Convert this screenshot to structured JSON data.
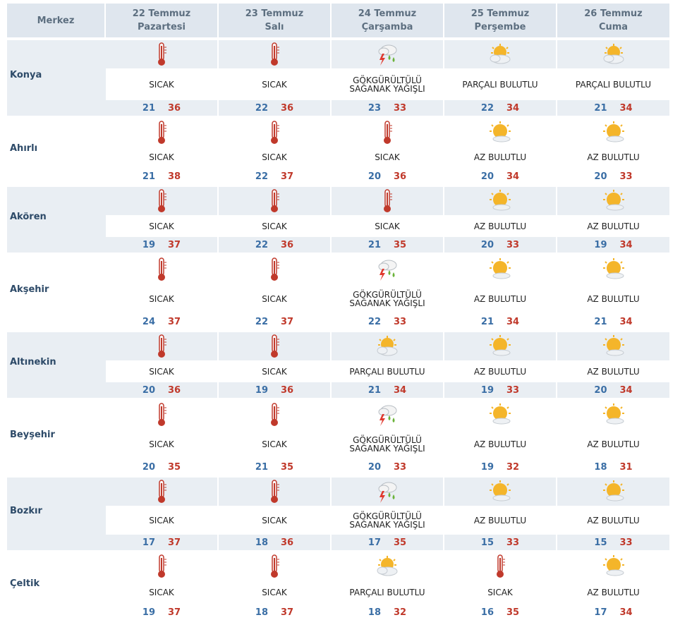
{
  "header": {
    "city_label": "Merkez",
    "days": [
      {
        "date": "22 Temmuz",
        "weekday": "Pazartesi"
      },
      {
        "date": "23 Temmuz",
        "weekday": "Salı"
      },
      {
        "date": "24 Temmuz",
        "weekday": "Çarşamba"
      },
      {
        "date": "25 Temmuz",
        "weekday": "Perşembe"
      },
      {
        "date": "26 Temmuz",
        "weekday": "Cuma"
      }
    ]
  },
  "colors": {
    "header_bg": "#dfe6ee",
    "row_shade": "#e9eef3",
    "min_temp": "#3a6ea5",
    "max_temp": "#c0392b",
    "city_text": "#2d4a68"
  },
  "rows": [
    {
      "city": "Konya",
      "days": [
        {
          "icon": "thermometer-icon",
          "cond": [
            "SICAK"
          ],
          "min": "21",
          "max": "36"
        },
        {
          "icon": "thermometer-icon",
          "cond": [
            "SICAK"
          ],
          "min": "22",
          "max": "36"
        },
        {
          "icon": "thunderstorm-icon",
          "cond": [
            "GÖKGÜRÜLTÜLÜ",
            "SAĞANAK YAĞIŞLI"
          ],
          "min": "23",
          "max": "33"
        },
        {
          "icon": "partly-cloudy-icon",
          "cond": [
            "PARÇALI BULUTLU"
          ],
          "min": "22",
          "max": "34"
        },
        {
          "icon": "partly-cloudy-icon",
          "cond": [
            "PARÇALI BULUTLU"
          ],
          "min": "21",
          "max": "34"
        }
      ]
    },
    {
      "city": "Ahırlı",
      "days": [
        {
          "icon": "thermometer-icon",
          "cond": [
            "SICAK"
          ],
          "min": "21",
          "max": "38"
        },
        {
          "icon": "thermometer-icon",
          "cond": [
            "SICAK"
          ],
          "min": "22",
          "max": "37"
        },
        {
          "icon": "thermometer-icon",
          "cond": [
            "SICAK"
          ],
          "min": "20",
          "max": "36"
        },
        {
          "icon": "mostly-sunny-icon",
          "cond": [
            "AZ BULUTLU"
          ],
          "min": "20",
          "max": "34"
        },
        {
          "icon": "mostly-sunny-icon",
          "cond": [
            "AZ BULUTLU"
          ],
          "min": "20",
          "max": "33"
        }
      ]
    },
    {
      "city": "Akören",
      "days": [
        {
          "icon": "thermometer-icon",
          "cond": [
            "SICAK"
          ],
          "min": "19",
          "max": "37"
        },
        {
          "icon": "thermometer-icon",
          "cond": [
            "SICAK"
          ],
          "min": "22",
          "max": "36"
        },
        {
          "icon": "thermometer-icon",
          "cond": [
            "SICAK"
          ],
          "min": "21",
          "max": "35"
        },
        {
          "icon": "mostly-sunny-icon",
          "cond": [
            "AZ BULUTLU"
          ],
          "min": "20",
          "max": "33"
        },
        {
          "icon": "mostly-sunny-icon",
          "cond": [
            "AZ BULUTLU"
          ],
          "min": "19",
          "max": "34"
        }
      ]
    },
    {
      "city": "Akşehir",
      "days": [
        {
          "icon": "thermometer-icon",
          "cond": [
            "SICAK"
          ],
          "min": "24",
          "max": "37"
        },
        {
          "icon": "thermometer-icon",
          "cond": [
            "SICAK"
          ],
          "min": "22",
          "max": "37"
        },
        {
          "icon": "thunderstorm-icon",
          "cond": [
            "GÖKGÜRÜLTÜLÜ",
            "SAĞANAK YAĞIŞLI"
          ],
          "min": "22",
          "max": "33"
        },
        {
          "icon": "mostly-sunny-icon",
          "cond": [
            "AZ BULUTLU"
          ],
          "min": "21",
          "max": "34"
        },
        {
          "icon": "mostly-sunny-icon",
          "cond": [
            "AZ BULUTLU"
          ],
          "min": "21",
          "max": "34"
        }
      ]
    },
    {
      "city": "Altınekin",
      "days": [
        {
          "icon": "thermometer-icon",
          "cond": [
            "SICAK"
          ],
          "min": "20",
          "max": "36"
        },
        {
          "icon": "thermometer-icon",
          "cond": [
            "SICAK"
          ],
          "min": "19",
          "max": "36"
        },
        {
          "icon": "partly-cloudy-icon",
          "cond": [
            "PARÇALI BULUTLU"
          ],
          "min": "21",
          "max": "34"
        },
        {
          "icon": "mostly-sunny-icon",
          "cond": [
            "AZ BULUTLU"
          ],
          "min": "19",
          "max": "33"
        },
        {
          "icon": "mostly-sunny-icon",
          "cond": [
            "AZ BULUTLU"
          ],
          "min": "20",
          "max": "34"
        }
      ]
    },
    {
      "city": "Beyşehir",
      "days": [
        {
          "icon": "thermometer-icon",
          "cond": [
            "SICAK"
          ],
          "min": "20",
          "max": "35"
        },
        {
          "icon": "thermometer-icon",
          "cond": [
            "SICAK"
          ],
          "min": "21",
          "max": "35"
        },
        {
          "icon": "thunderstorm-icon",
          "cond": [
            "GÖKGÜRÜLTÜLÜ",
            "SAĞANAK YAĞIŞLI"
          ],
          "min": "20",
          "max": "33"
        },
        {
          "icon": "mostly-sunny-icon",
          "cond": [
            "AZ BULUTLU"
          ],
          "min": "19",
          "max": "32"
        },
        {
          "icon": "mostly-sunny-icon",
          "cond": [
            "AZ BULUTLU"
          ],
          "min": "18",
          "max": "31"
        }
      ]
    },
    {
      "city": "Bozkır",
      "days": [
        {
          "icon": "thermometer-icon",
          "cond": [
            "SICAK"
          ],
          "min": "17",
          "max": "37"
        },
        {
          "icon": "thermometer-icon",
          "cond": [
            "SICAK"
          ],
          "min": "18",
          "max": "36"
        },
        {
          "icon": "thunderstorm-icon",
          "cond": [
            "GÖKGÜRÜLTÜLÜ",
            "SAĞANAK YAĞIŞLI"
          ],
          "min": "17",
          "max": "35"
        },
        {
          "icon": "mostly-sunny-icon",
          "cond": [
            "AZ BULUTLU"
          ],
          "min": "15",
          "max": "33"
        },
        {
          "icon": "mostly-sunny-icon",
          "cond": [
            "AZ BULUTLU"
          ],
          "min": "15",
          "max": "33"
        }
      ]
    },
    {
      "city": "Çeltik",
      "days": [
        {
          "icon": "thermometer-icon",
          "cond": [
            "SICAK"
          ],
          "min": "19",
          "max": "37"
        },
        {
          "icon": "thermometer-icon",
          "cond": [
            "SICAK"
          ],
          "min": "18",
          "max": "37"
        },
        {
          "icon": "partly-cloudy-icon",
          "cond": [
            "PARÇALI BULUTLU"
          ],
          "min": "18",
          "max": "32"
        },
        {
          "icon": "thermometer-icon",
          "cond": [
            "SICAK"
          ],
          "min": "16",
          "max": "35"
        },
        {
          "icon": "mostly-sunny-icon",
          "cond": [
            "AZ BULUTLU"
          ],
          "min": "17",
          "max": "34"
        }
      ]
    }
  ]
}
